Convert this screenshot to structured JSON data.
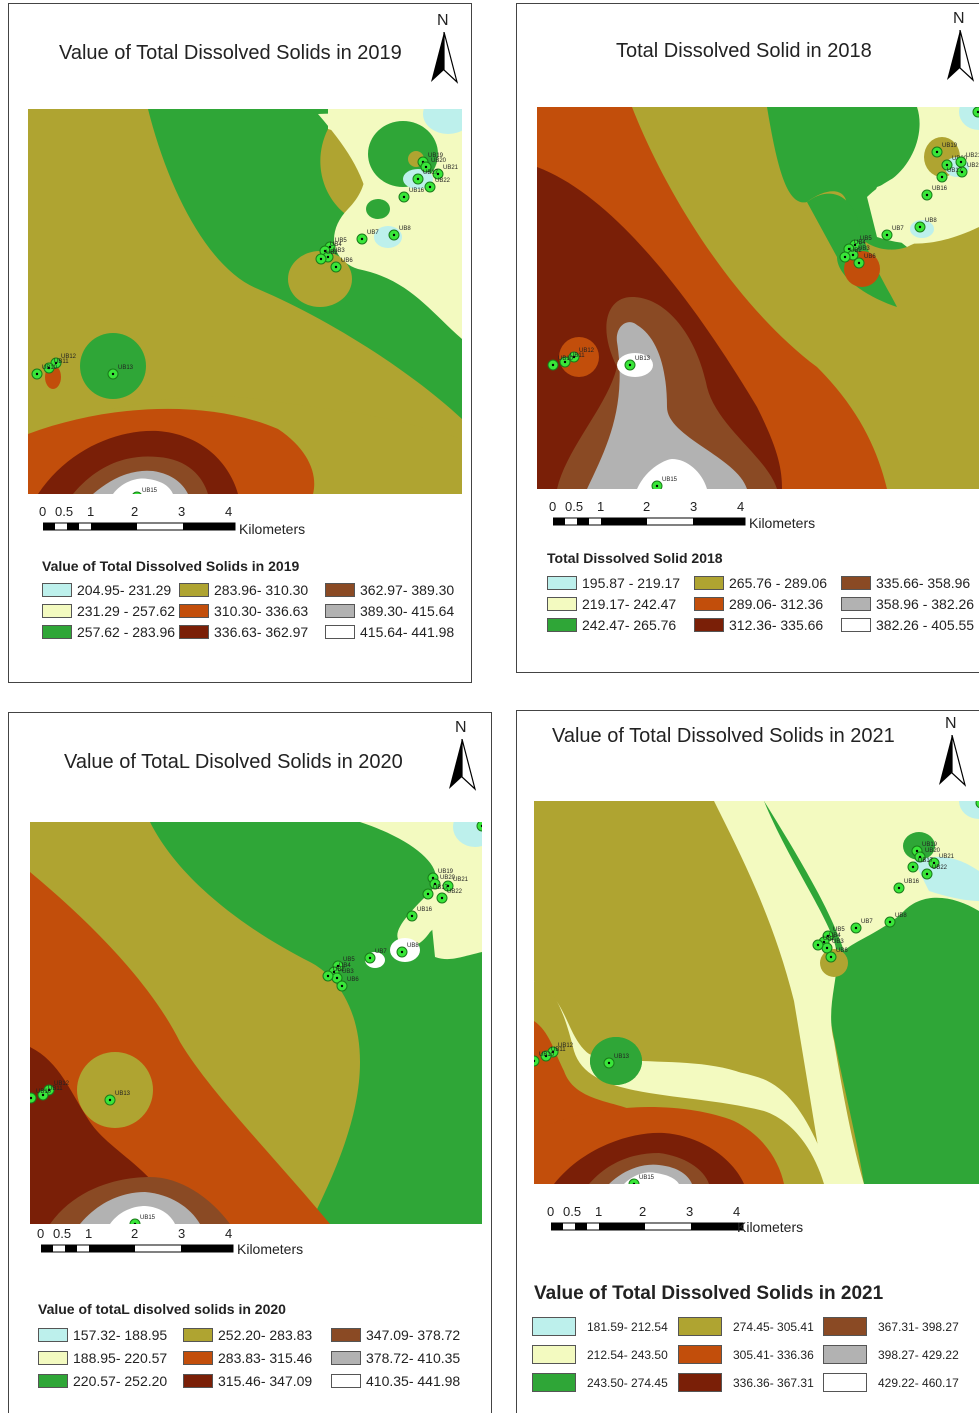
{
  "north_label": "N",
  "scale": {
    "ticks": [
      "0",
      "0.5",
      "1",
      "2",
      "3",
      "4"
    ],
    "unit": "Kilometers"
  },
  "colors": {
    "c1": "#bdf0ec",
    "c2": "#f3fac0",
    "c3": "#2fa637",
    "c4": "#afa431",
    "c5": "#c24e0b",
    "c6": "#7a1f07",
    "c7": "#8a4a24",
    "c8": "#b2b2b2",
    "c9": "#ffffff",
    "station": "#39e639"
  },
  "stations": [
    "UB23",
    "UB19",
    "UB20",
    "UB21",
    "UB22",
    "UB17",
    "UB16",
    "UB8",
    "UB7",
    "UB5",
    "UB4",
    "UB3",
    "UB2",
    "UB6",
    "UB12",
    "UB11",
    "UB10",
    "UB13",
    "UB15"
  ],
  "panels": [
    {
      "id": "p2019",
      "title": "Value of Total Dissolved Solids in 2019",
      "legend_title": "Value of Total Dissolved Solids in 2019",
      "legend": [
        {
          "label": "204.95- 231.29",
          "color": "#bdf0ec"
        },
        {
          "label": "231.29 - 257.62",
          "color": "#f3fac0"
        },
        {
          "label": "257.62 - 283.96",
          "color": "#2fa637"
        },
        {
          "label": "283.96- 310.30",
          "color": "#afa431"
        },
        {
          "label": "310.30- 336.63",
          "color": "#c24e0b"
        },
        {
          "label": "336.63- 362.97",
          "color": "#7a1f07"
        },
        {
          "label": "362.97- 389.30",
          "color": "#8a4a24"
        },
        {
          "label": "389.30- 415.64",
          "color": "#b2b2b2"
        },
        {
          "label": "415.64- 441.98",
          "color": "#ffffff"
        }
      ]
    },
    {
      "id": "p2018",
      "title": "Total Dissolved Solid in 2018",
      "legend_title": "Total Dissolved Solid 2018",
      "legend": [
        {
          "label": "195.87 - 219.17",
          "color": "#bdf0ec"
        },
        {
          "label": "219.17- 242.47",
          "color": "#f3fac0"
        },
        {
          "label": "242.47- 265.76",
          "color": "#2fa637"
        },
        {
          "label": "265.76 - 289.06",
          "color": "#afa431"
        },
        {
          "label": "289.06- 312.36",
          "color": "#c24e0b"
        },
        {
          "label": "312.36- 335.66",
          "color": "#7a1f07"
        },
        {
          "label": "335.66- 358.96",
          "color": "#8a4a24"
        },
        {
          "label": "358.96 - 382.26",
          "color": "#b2b2b2"
        },
        {
          "label": "382.26 - 405.55",
          "color": "#ffffff"
        }
      ]
    },
    {
      "id": "p2020",
      "title": "Value of TotaL Disolved Solids in 2020",
      "legend_title": "Value of totaL disolved solids in 2020",
      "legend": [
        {
          "label": "157.32- 188.95",
          "color": "#bdf0ec"
        },
        {
          "label": "188.95- 220.57",
          "color": "#f3fac0"
        },
        {
          "label": "220.57- 252.20",
          "color": "#2fa637"
        },
        {
          "label": "252.20- 283.83",
          "color": "#afa431"
        },
        {
          "label": "283.83- 315.46",
          "color": "#c24e0b"
        },
        {
          "label": "315.46- 347.09",
          "color": "#7a1f07"
        },
        {
          "label": "347.09- 378.72",
          "color": "#8a4a24"
        },
        {
          "label": "378.72- 410.35",
          "color": "#b2b2b2"
        },
        {
          "label": "410.35- 441.98",
          "color": "#ffffff"
        }
      ]
    },
    {
      "id": "p2021",
      "title": "Value of Total Dissolved Solids in 2021",
      "legend_title": "Value of Total Dissolved Solids in 2021",
      "legend": [
        {
          "label": "181.59- 212.54",
          "color": "#bdf0ec"
        },
        {
          "label": "212.54- 243.50",
          "color": "#f3fac0"
        },
        {
          "label": "243.50- 274.45",
          "color": "#2fa637"
        },
        {
          "label": "274.45- 305.41",
          "color": "#afa431"
        },
        {
          "label": "305.41- 336.36",
          "color": "#c24e0b"
        },
        {
          "label": "336.36- 367.31",
          "color": "#7a1f07"
        },
        {
          "label": "367.31- 398.27",
          "color": "#8a4a24"
        },
        {
          "label": "398.27- 429.22",
          "color": "#b2b2b2"
        },
        {
          "label": "429.22- 460.17",
          "color": "#ffffff"
        }
      ]
    }
  ]
}
